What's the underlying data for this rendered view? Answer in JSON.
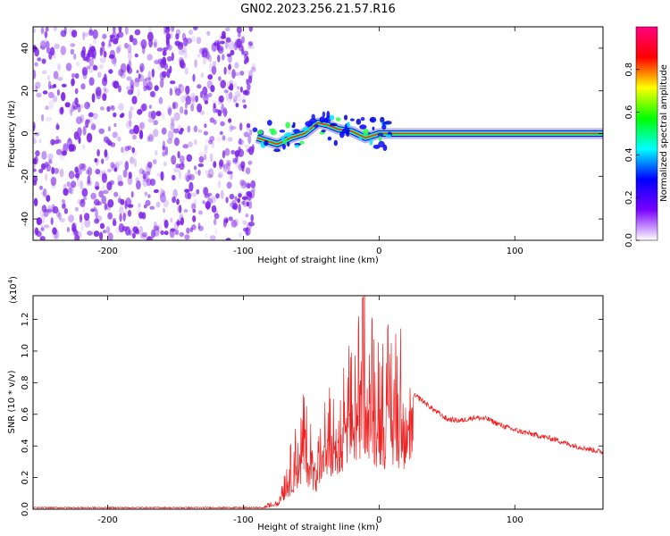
{
  "title": "GN02.2023.256.21.57.R16",
  "colors": {
    "snr_line": "#ee2222",
    "noise_dot": "#7a1fe6",
    "ridge_core": "#ff2a2a",
    "ridge_mid": "#20ff40",
    "ridge_outer": "#2a2acc",
    "axis": "#000000"
  },
  "colorbar": {
    "label": "Normalized spectral amplitude",
    "ticks": [
      "0.0",
      "0.2",
      "0.4",
      "0.6",
      "0.8"
    ],
    "stops": [
      "#ffffff",
      "#7a00ff",
      "#0000ff",
      "#00ffff",
      "#00ff00",
      "#ffff00",
      "#ff0000",
      "#ff0080"
    ]
  },
  "chart_data": [
    {
      "type": "heatmap",
      "title": "GN02.2023.256.21.57.R16",
      "xlabel": "Height of straight line (km)",
      "ylabel": "Frequency (Hz)",
      "xlim": [
        -255,
        165
      ],
      "ylim": [
        -50,
        50
      ],
      "x_ticks": [
        "-200",
        "-100",
        "0",
        "100"
      ],
      "y_ticks": [
        "-40",
        "-20",
        "0",
        "20",
        "40"
      ],
      "x_tick_values": [
        -200,
        -100,
        0,
        100
      ],
      "y_tick_values": [
        -40,
        -20,
        0,
        20,
        40
      ],
      "noise_region_x": [
        -255,
        -92
      ],
      "ridge_x": [
        -90,
        -75,
        -65,
        -55,
        -45,
        -38,
        -30,
        -20,
        -10,
        0,
        10,
        165
      ],
      "ridge_y": [
        -2,
        -5,
        -2,
        0,
        5,
        4,
        2,
        1,
        -2,
        0,
        0,
        0
      ]
    },
    {
      "type": "line",
      "xlabel": "Height of straight line (km)",
      "ylabel": "SNR (10 * v/v)",
      "scale_label": "(x10",
      "scale_exp": "4",
      "scale_close": ")",
      "xlim": [
        -255,
        165
      ],
      "ylim": [
        0,
        1.35
      ],
      "x_ticks": [
        "-200",
        "-100",
        "0",
        "100"
      ],
      "y_ticks": [
        "0.0",
        "0.2",
        "0.4",
        "0.6",
        "0.8",
        "1.0",
        "1.2"
      ],
      "x_tick_values": [
        -200,
        -100,
        0,
        100
      ],
      "y_tick_values": [
        0,
        0.2,
        0.4,
        0.6,
        0.8,
        1.0,
        1.2
      ],
      "series": [
        {
          "x": [
            -255,
            -200,
            -150,
            -100,
            -85,
            -75,
            -70,
            -65,
            -60,
            -55,
            -50,
            -45,
            -40,
            -35,
            -30,
            -25,
            -20,
            -15,
            -12,
            -10,
            -5,
            0,
            5,
            10,
            15,
            20,
            25,
            30,
            40,
            50,
            60,
            70,
            80,
            90,
            100,
            110,
            120,
            130,
            140,
            150,
            165
          ],
          "y": [
            0.01,
            0.01,
            0.01,
            0.01,
            0.01,
            0.05,
            0.15,
            0.25,
            0.35,
            0.45,
            0.35,
            0.3,
            0.45,
            0.5,
            0.45,
            0.6,
            0.65,
            0.75,
            1.1,
            0.9,
            0.75,
            0.72,
            0.7,
            0.7,
            0.72,
            0.7,
            0.72,
            0.7,
            0.63,
            0.57,
            0.56,
            0.58,
            0.57,
            0.53,
            0.5,
            0.48,
            0.46,
            0.44,
            0.41,
            0.39,
            0.36
          ]
        }
      ]
    }
  ]
}
